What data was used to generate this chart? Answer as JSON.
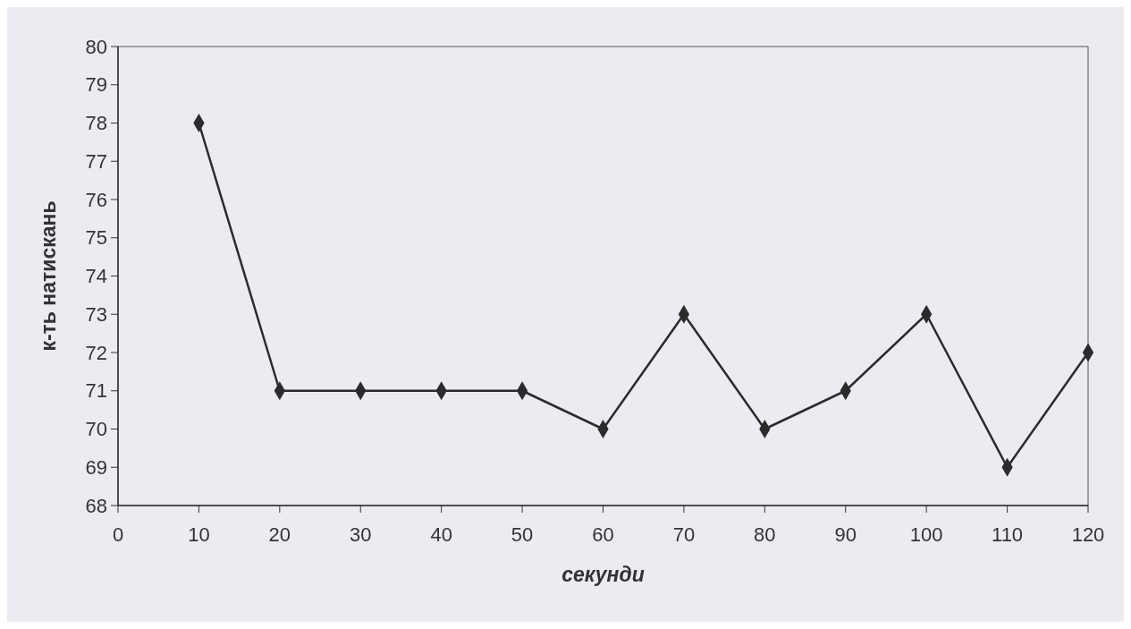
{
  "chart_data": {
    "type": "line",
    "xlabel": "секунди",
    "ylabel": "к-ть натискань",
    "x": [
      10,
      20,
      30,
      40,
      50,
      60,
      70,
      80,
      90,
      100,
      110,
      120
    ],
    "series": [
      {
        "color": "#2b2b2b",
        "values": [
          78,
          71,
          71,
          71,
          71,
          70,
          73,
          70,
          71,
          73,
          69,
          72
        ]
      }
    ],
    "xlim": [
      0,
      120
    ],
    "xticks": [
      0,
      10,
      20,
      30,
      40,
      50,
      60,
      70,
      80,
      90,
      100,
      110,
      120
    ],
    "ylim": [
      68,
      80
    ],
    "yticks": [
      68,
      69,
      70,
      71,
      72,
      73,
      74,
      75,
      76,
      77,
      78,
      79,
      80
    ],
    "marker": "diamond",
    "line_style": "solid",
    "grid": false
  }
}
